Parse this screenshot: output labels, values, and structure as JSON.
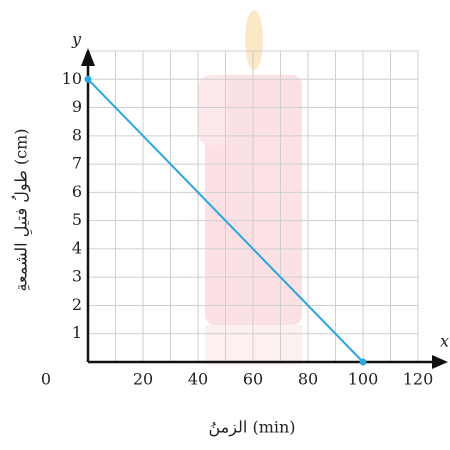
{
  "chart_data": {
    "type": "line",
    "x_axis_letter": "x",
    "y_axis_letter": "y",
    "x_label": "الزمنُ (min)",
    "y_label": "طولُ فتيلِ الشمعةِ (cm)",
    "x": [
      0,
      100
    ],
    "series": [
      {
        "name": null,
        "color": "#2ba6de",
        "values": [
          10,
          0
        ]
      }
    ],
    "xlim": [
      0,
      120
    ],
    "ylim": [
      0,
      11
    ],
    "xticks": [
      0,
      20,
      40,
      60,
      80,
      100,
      120
    ],
    "yticks": [
      1,
      2,
      3,
      4,
      5,
      6,
      7,
      8,
      9,
      10
    ],
    "xgrid": [
      10,
      20,
      30,
      40,
      50,
      60,
      70,
      80,
      90,
      100,
      110,
      120
    ],
    "ygrid": [
      1,
      2,
      3,
      4,
      5,
      6,
      7,
      8,
      9,
      10,
      11
    ],
    "grid": true
  }
}
